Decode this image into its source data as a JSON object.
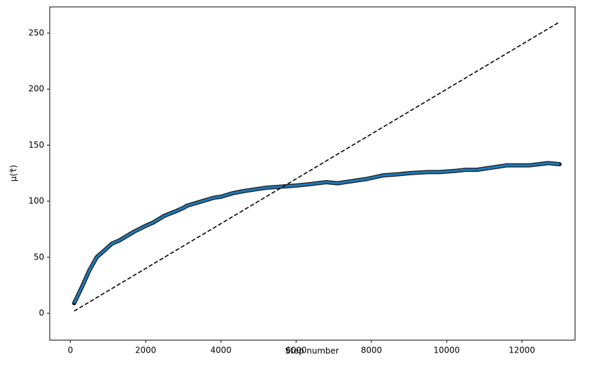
{
  "chart_data": {
    "type": "line",
    "xlabel": "Step number",
    "ylabel": "μ(τ̂)",
    "xlim": [
      -550,
      13413
    ],
    "ylim": [
      -24,
      273.4
    ],
    "xticks": [
      0,
      2000,
      4000,
      6000,
      8000,
      10000,
      12000
    ],
    "yticks": [
      0,
      50,
      100,
      150,
      200,
      250
    ],
    "series": [
      {
        "color": "#1f77b4",
        "outline": "#1a1a1a",
        "style": "solid",
        "x": [
          100,
          300,
          500,
          700,
          900,
          1100,
          1300,
          1500,
          1700,
          2000,
          2200,
          2500,
          2800,
          3000,
          3100,
          3300,
          3600,
          3800,
          4000,
          4300,
          4600,
          5000,
          5200,
          5600,
          6000,
          6300,
          6800,
          7100,
          7500,
          7900,
          8300,
          8700,
          9000,
          9500,
          9800,
          10200,
          10500,
          10800,
          11200,
          11600,
          12000,
          12200,
          12700,
          13000
        ],
        "values": [
          9,
          23,
          38,
          50,
          56,
          62,
          65,
          69,
          73,
          78,
          81,
          87,
          91,
          94,
          96,
          98,
          101,
          103,
          104,
          107,
          109,
          111,
          112,
          113,
          114,
          115,
          117,
          116,
          118,
          120,
          123,
          124,
          125,
          126,
          126,
          127,
          128,
          128,
          130,
          132,
          132,
          132,
          134,
          133
        ]
      },
      {
        "color": "#000000",
        "style": "dashed",
        "x": [
          100,
          13000
        ],
        "values": [
          2,
          260
        ]
      }
    ]
  }
}
